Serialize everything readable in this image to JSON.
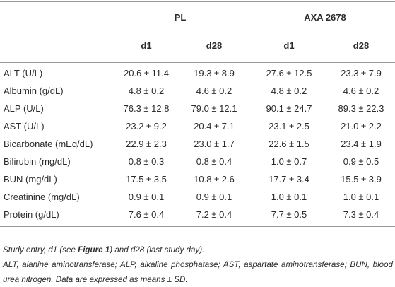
{
  "table": {
    "groups": [
      "PL",
      "AXA 2678"
    ],
    "subheaders": [
      "d1",
      "d28",
      "d1",
      "d28"
    ],
    "rows": [
      [
        "ALT (U/L)",
        "20.6 ± 11.4",
        "19.3 ± 8.9",
        "27.6 ± 12.5",
        "23.3 ± 7.9"
      ],
      [
        "Albumin (g/dL)",
        "4.8 ± 0.2",
        "4.6 ± 0.2",
        "4.8 ± 0.2",
        "4.6 ± 0.2"
      ],
      [
        "ALP (U/L)",
        "76.3 ± 12.8",
        "79.0 ± 12.1",
        "90.1 ± 24.7",
        "89.3 ± 22.3"
      ],
      [
        "AST (U/L)",
        "23.2 ± 9.2",
        "20.4 ± 7.1",
        "23.1 ± 2.5",
        "21.0 ± 2.2"
      ],
      [
        "Bicarbonate (mEq/dL)",
        "22.9 ± 2.3",
        "23.0 ± 1.7",
        "22.6 ± 1.5",
        "23.4 ± 1.9"
      ],
      [
        "Bilirubin (mg/dL)",
        "0.8 ± 0.3",
        "0.8 ± 0.4",
        "1.0 ± 0.7",
        "0.9 ± 0.5"
      ],
      [
        "BUN (mg/dL)",
        "17.5 ± 3.5",
        "10.8 ± 2.6",
        "17.7 ± 3.4",
        "15.5 ± 3.9"
      ],
      [
        "Creatinine (mg/dL)",
        "0.9 ± 0.1",
        "0.9 ± 0.1",
        "1.0 ± 0.1",
        "1.0 ± 0.1"
      ],
      [
        "Protein (g/dL)",
        "7.6 ± 0.4",
        "7.2 ± 0.4",
        "7.7 ± 0.5",
        "7.3 ± 0.4"
      ]
    ]
  },
  "footnotes": {
    "first": {
      "before": "Study entry, d1 (see ",
      "link": "Figure 1",
      "after": ") and d28 (last study day)."
    },
    "second": "ALT, alanine aminotransferase; ALP, alkaline phosphatase; AST, aspartate aminotransferase; BUN, blood urea nitrogen. Data are expressed as means ± SD."
  }
}
